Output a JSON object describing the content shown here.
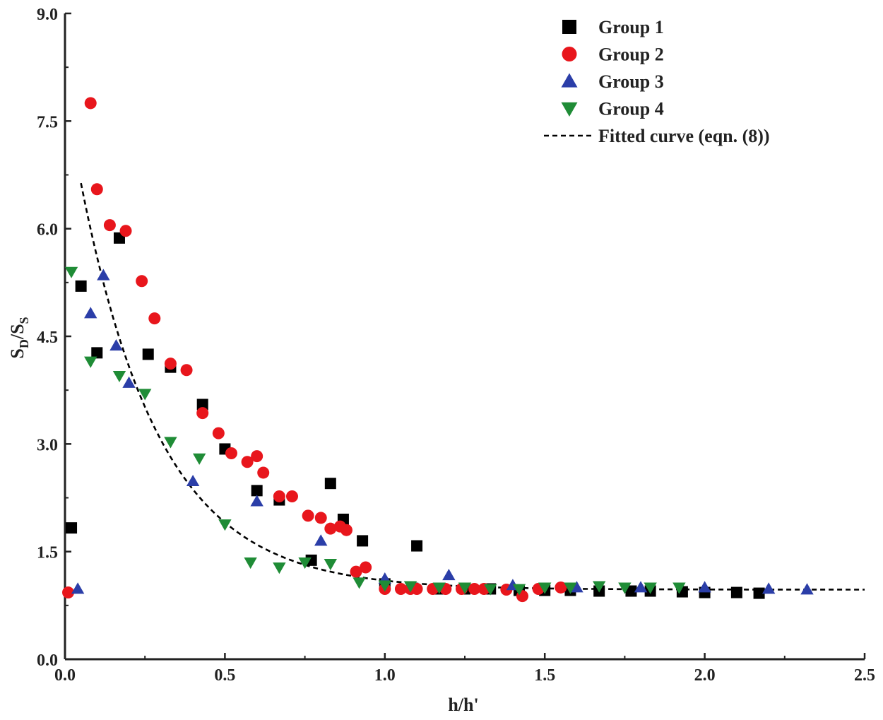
{
  "chart_data": {
    "type": "scatter",
    "title": "",
    "xlabel": "h/h'",
    "ylabel_main": "S",
    "ylabel_sub1": "D",
    "ylabel_mid": "/S",
    "ylabel_sub2": "S",
    "xlim": [
      0,
      2.5
    ],
    "ylim": [
      0,
      9
    ],
    "xticks": [
      "0.0",
      "0.5",
      "1.0",
      "1.5",
      "2.0",
      "2.5"
    ],
    "yticks": [
      "0.0",
      "1.5",
      "3.0",
      "4.5",
      "6.0",
      "7.5",
      "9.0"
    ],
    "grid": false,
    "legend_position": "top-right",
    "series": [
      {
        "name": "Group 1",
        "marker": "square",
        "color": "#000000",
        "x": [
          0.02,
          0.05,
          0.1,
          0.17,
          0.26,
          0.33,
          0.43,
          0.5,
          0.6,
          0.67,
          0.77,
          0.83,
          0.87,
          0.93,
          1.0,
          1.1,
          1.17,
          1.25,
          1.33,
          1.42,
          1.5,
          1.58,
          1.67,
          1.77,
          1.83,
          1.93,
          2.0,
          2.1,
          2.17
        ],
        "y": [
          1.83,
          5.2,
          4.27,
          5.87,
          4.25,
          4.07,
          3.55,
          2.93,
          2.35,
          2.22,
          1.38,
          2.45,
          1.95,
          1.65,
          1.05,
          1.58,
          0.98,
          0.98,
          0.98,
          0.96,
          0.96,
          0.96,
          0.95,
          0.95,
          0.95,
          0.94,
          0.93,
          0.93,
          0.92
        ]
      },
      {
        "name": "Group 2",
        "marker": "circle",
        "color": "#e8161c",
        "x": [
          0.01,
          0.08,
          0.1,
          0.14,
          0.19,
          0.24,
          0.28,
          0.33,
          0.38,
          0.43,
          0.48,
          0.52,
          0.57,
          0.6,
          0.62,
          0.67,
          0.71,
          0.76,
          0.8,
          0.83,
          0.86,
          0.88,
          0.91,
          0.94,
          1.0,
          1.05,
          1.08,
          1.1,
          1.15,
          1.19,
          1.24,
          1.28,
          1.31,
          1.38,
          1.43,
          1.48,
          1.55
        ],
        "y": [
          0.93,
          7.75,
          6.55,
          6.05,
          5.97,
          5.27,
          4.75,
          4.12,
          4.03,
          3.43,
          3.15,
          2.87,
          2.75,
          2.83,
          2.6,
          2.27,
          2.27,
          2.0,
          1.97,
          1.82,
          1.85,
          1.8,
          1.22,
          1.28,
          0.98,
          0.98,
          0.98,
          0.98,
          0.98,
          0.98,
          0.98,
          0.98,
          0.98,
          0.97,
          0.88,
          0.98,
          1.0
        ]
      },
      {
        "name": "Group 3",
        "marker": "triangle-up",
        "color": "#2b3ea8",
        "x": [
          0.04,
          0.08,
          0.12,
          0.16,
          0.2,
          0.4,
          0.6,
          0.8,
          1.0,
          1.2,
          1.4,
          1.6,
          1.8,
          2.0,
          2.2,
          2.32
        ],
        "y": [
          0.98,
          4.82,
          5.35,
          4.37,
          3.85,
          2.48,
          2.2,
          1.65,
          1.12,
          1.17,
          1.03,
          1.0,
          1.0,
          1.0,
          0.98,
          0.97
        ]
      },
      {
        "name": "Group 4",
        "marker": "triangle-down",
        "color": "#1f8c36",
        "x": [
          0.02,
          0.08,
          0.17,
          0.25,
          0.33,
          0.42,
          0.5,
          0.58,
          0.67,
          0.75,
          0.83,
          0.92,
          1.0,
          1.08,
          1.17,
          1.25,
          1.33,
          1.42,
          1.5,
          1.58,
          1.67,
          1.75,
          1.83,
          1.92
        ],
        "y": [
          5.4,
          4.15,
          3.95,
          3.7,
          3.03,
          2.8,
          1.88,
          1.35,
          1.28,
          1.35,
          1.33,
          1.07,
          1.03,
          1.02,
          1.0,
          1.0,
          0.98,
          0.98,
          1.0,
          1.0,
          1.02,
          1.0,
          1.0,
          1.0
        ]
      }
    ],
    "fit": {
      "name": "Fitted curve (eqn. (8))",
      "style": "dashed",
      "color": "#000000",
      "x_range": [
        0.05,
        2.5
      ],
      "asymptote": 0.97,
      "amplitude": 6.92,
      "rate": 4.0
    }
  }
}
